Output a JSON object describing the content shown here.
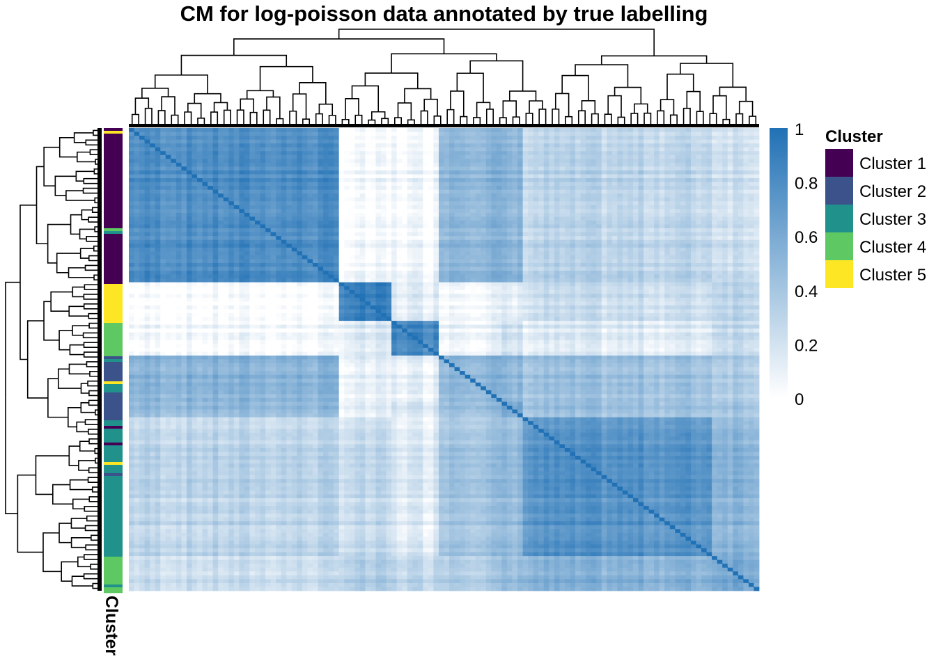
{
  "title": "CM for log-poisson data annotated by true labelling",
  "annotation_label": "Cluster",
  "colorbar": {
    "ticks": [
      "1",
      "0.8",
      "0.6",
      "0.4",
      "0.2",
      "0"
    ],
    "color_low": "#ffffff",
    "color_high": "#2171b5"
  },
  "legend": {
    "title": "Cluster",
    "items": [
      {
        "label": "Cluster 1",
        "color": "#440154"
      },
      {
        "label": "Cluster 2",
        "color": "#3b528b"
      },
      {
        "label": "Cluster 3",
        "color": "#21918c"
      },
      {
        "label": "Cluster 4",
        "color": "#5ec962"
      },
      {
        "label": "Cluster 5",
        "color": "#fde725"
      }
    ]
  },
  "chart_data": {
    "type": "heatmap",
    "title": "CM for log-poisson data annotated by true labelling",
    "value_range": [
      0,
      1
    ],
    "row_order_blocks": [
      "A",
      "B",
      "C",
      "D",
      "E",
      "F",
      "G"
    ],
    "block_fractions": [
      0.337,
      0.08,
      0.077,
      0.1,
      0.035,
      0.295,
      0.076
    ],
    "column_order_blocks": [
      "A",
      "B",
      "C",
      "D",
      "E",
      "F",
      "G"
    ],
    "block_dominant_cluster": [
      "Cluster 1",
      "Cluster 5",
      "Cluster 4",
      "Cluster 2",
      "Cluster 2",
      "Cluster 3",
      "Cluster 4"
    ],
    "block_similarity_matrix": [
      [
        0.8,
        0.02,
        0.05,
        0.55,
        0.5,
        0.3,
        0.25
      ],
      [
        0.02,
        0.9,
        0.15,
        0.1,
        0.12,
        0.25,
        0.35
      ],
      [
        0.05,
        0.15,
        0.85,
        0.12,
        0.2,
        0.15,
        0.3
      ],
      [
        0.55,
        0.1,
        0.12,
        0.55,
        0.5,
        0.45,
        0.4
      ],
      [
        0.5,
        0.12,
        0.2,
        0.5,
        0.6,
        0.45,
        0.45
      ],
      [
        0.3,
        0.25,
        0.15,
        0.45,
        0.45,
        0.75,
        0.55
      ],
      [
        0.25,
        0.35,
        0.3,
        0.4,
        0.45,
        0.55,
        0.65
      ]
    ],
    "annotation": "Cluster",
    "row_dendrogram": true,
    "column_dendrogram": true
  }
}
